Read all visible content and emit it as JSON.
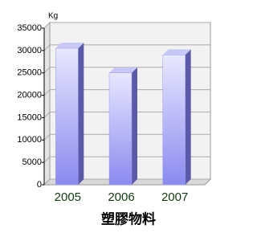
{
  "chart_data": {
    "type": "bar",
    "y_label": "Kg",
    "x_label": "塑膠物料",
    "categories": [
      "2005",
      "2006",
      "2007"
    ],
    "values": [
      30500,
      25000,
      29000
    ],
    "color": "#9a9af0",
    "ylim": [
      0,
      35000
    ],
    "yticks": [
      0,
      5000,
      10000,
      15000,
      20000,
      25000,
      30000,
      35000
    ],
    "grid": true
  }
}
